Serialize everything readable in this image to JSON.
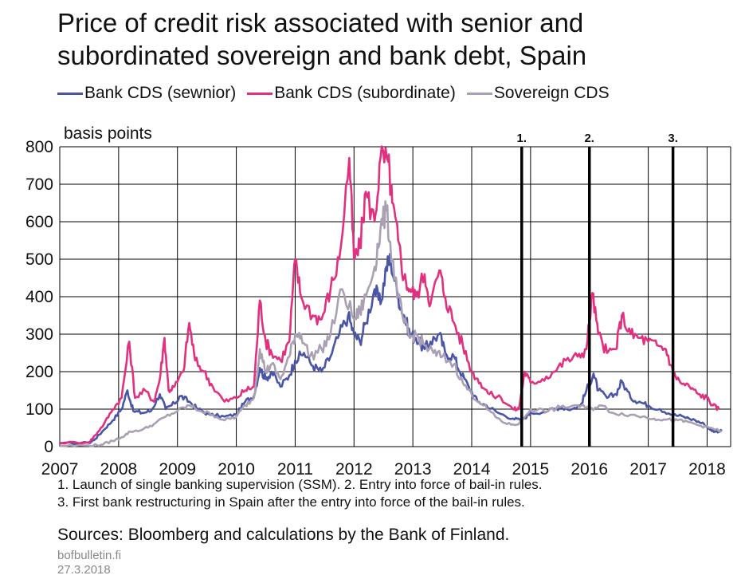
{
  "title_lines": [
    "Price of credit risk associated with senior and",
    "subordinated sovereign and bank debt, Spain"
  ],
  "legend": [
    {
      "label": "Bank CDS (sewnior)",
      "color": "#4a55a8"
    },
    {
      "label": "Bank CDS (subordinate)",
      "color": "#e0307f"
    },
    {
      "label": "Sovereign CDS",
      "color": "#a9a0b4"
    }
  ],
  "notes": [
    "1. Launch of single banking supervision (SSM). 2. Entry into force of bail-in rules.",
    "3. First bank restructuring in Spain after the entry into force of the bail-in rules."
  ],
  "sources": "Sources: Bloomberg and calculations by the Bank of Finland.",
  "site": "bofbulletin.fi",
  "date": "27.3.2018",
  "chart_data": {
    "type": "line",
    "ylabel": "basis points",
    "ylim": [
      0,
      800
    ],
    "yticks": [
      0,
      100,
      200,
      300,
      400,
      500,
      600,
      700,
      800
    ],
    "xlim": [
      2007,
      2018.4
    ],
    "xticks": [
      "2007",
      "2008",
      "2009",
      "2010",
      "2011",
      "2012",
      "2013",
      "2014",
      "2015",
      "2016",
      "2017",
      "2018"
    ],
    "grid": true,
    "legend_position": "top",
    "events": [
      {
        "label": "1.",
        "x": 2014.85
      },
      {
        "label": "2.",
        "x": 2016.0
      },
      {
        "label": "3.",
        "x": 2017.42
      }
    ],
    "series": [
      {
        "name": "Bank CDS (sewnior)",
        "color": "#4a55a8",
        "points": [
          [
            2007.0,
            8
          ],
          [
            2007.5,
            10
          ],
          [
            2007.6,
            20
          ],
          [
            2007.75,
            45
          ],
          [
            2007.9,
            70
          ],
          [
            2008.05,
            100
          ],
          [
            2008.15,
            150
          ],
          [
            2008.25,
            95
          ],
          [
            2008.4,
            90
          ],
          [
            2008.55,
            95
          ],
          [
            2008.7,
            140
          ],
          [
            2008.8,
            100
          ],
          [
            2008.95,
            115
          ],
          [
            2009.05,
            135
          ],
          [
            2009.2,
            120
          ],
          [
            2009.35,
            100
          ],
          [
            2009.55,
            85
          ],
          [
            2009.8,
            80
          ],
          [
            2010.0,
            85
          ],
          [
            2010.15,
            120
          ],
          [
            2010.3,
            135
          ],
          [
            2010.4,
            210
          ],
          [
            2010.5,
            180
          ],
          [
            2010.6,
            200
          ],
          [
            2010.75,
            160
          ],
          [
            2010.9,
            190
          ],
          [
            2011.0,
            230
          ],
          [
            2011.15,
            250
          ],
          [
            2011.3,
            215
          ],
          [
            2011.45,
            200
          ],
          [
            2011.6,
            240
          ],
          [
            2011.75,
            300
          ],
          [
            2011.9,
            350
          ],
          [
            2012.0,
            300
          ],
          [
            2012.1,
            280
          ],
          [
            2012.2,
            330
          ],
          [
            2012.35,
            420
          ],
          [
            2012.45,
            380
          ],
          [
            2012.55,
            480
          ],
          [
            2012.62,
            500
          ],
          [
            2012.75,
            400
          ],
          [
            2012.85,
            350
          ],
          [
            2012.95,
            300
          ],
          [
            2013.05,
            290
          ],
          [
            2013.2,
            260
          ],
          [
            2013.3,
            280
          ],
          [
            2013.45,
            300
          ],
          [
            2013.55,
            250
          ],
          [
            2013.7,
            240
          ],
          [
            2013.8,
            200
          ],
          [
            2013.95,
            160
          ],
          [
            2014.1,
            120
          ],
          [
            2014.25,
            110
          ],
          [
            2014.45,
            90
          ],
          [
            2014.7,
            75
          ],
          [
            2014.85,
            70
          ],
          [
            2015.0,
            90
          ],
          [
            2015.3,
            95
          ],
          [
            2015.5,
            105
          ],
          [
            2015.7,
            100
          ],
          [
            2015.85,
            110
          ],
          [
            2015.95,
            150
          ],
          [
            2016.07,
            195
          ],
          [
            2016.15,
            150
          ],
          [
            2016.3,
            130
          ],
          [
            2016.45,
            140
          ],
          [
            2016.55,
            175
          ],
          [
            2016.7,
            130
          ],
          [
            2016.85,
            120
          ],
          [
            2017.0,
            110
          ],
          [
            2017.2,
            100
          ],
          [
            2017.42,
            85
          ],
          [
            2017.6,
            80
          ],
          [
            2017.8,
            70
          ],
          [
            2017.95,
            60
          ],
          [
            2018.05,
            45
          ],
          [
            2018.15,
            40
          ],
          [
            2018.25,
            42
          ]
        ]
      },
      {
        "name": "Bank CDS (subordinate)",
        "color": "#e0307f",
        "points": [
          [
            2007.0,
            10
          ],
          [
            2007.5,
            12
          ],
          [
            2007.6,
            30
          ],
          [
            2007.75,
            60
          ],
          [
            2007.9,
            100
          ],
          [
            2008.05,
            130
          ],
          [
            2008.18,
            280
          ],
          [
            2008.28,
            130
          ],
          [
            2008.45,
            150
          ],
          [
            2008.6,
            120
          ],
          [
            2008.7,
            180
          ],
          [
            2008.78,
            290
          ],
          [
            2008.85,
            150
          ],
          [
            2008.95,
            160
          ],
          [
            2009.1,
            200
          ],
          [
            2009.2,
            330
          ],
          [
            2009.3,
            230
          ],
          [
            2009.45,
            200
          ],
          [
            2009.6,
            160
          ],
          [
            2009.8,
            120
          ],
          [
            2010.0,
            130
          ],
          [
            2010.15,
            150
          ],
          [
            2010.3,
            160
          ],
          [
            2010.4,
            390
          ],
          [
            2010.5,
            280
          ],
          [
            2010.6,
            250
          ],
          [
            2010.75,
            230
          ],
          [
            2010.9,
            280
          ],
          [
            2011.0,
            500
          ],
          [
            2011.1,
            400
          ],
          [
            2011.3,
            350
          ],
          [
            2011.45,
            340
          ],
          [
            2011.6,
            420
          ],
          [
            2011.75,
            500
          ],
          [
            2011.92,
            770
          ],
          [
            2012.0,
            500
          ],
          [
            2012.1,
            530
          ],
          [
            2012.2,
            680
          ],
          [
            2012.35,
            600
          ],
          [
            2012.45,
            770
          ],
          [
            2012.58,
            760
          ],
          [
            2012.65,
            650
          ],
          [
            2012.75,
            550
          ],
          [
            2012.85,
            450
          ],
          [
            2012.95,
            420
          ],
          [
            2013.05,
            400
          ],
          [
            2013.2,
            460
          ],
          [
            2013.3,
            380
          ],
          [
            2013.45,
            470
          ],
          [
            2013.55,
            400
          ],
          [
            2013.7,
            330
          ],
          [
            2013.85,
            270
          ],
          [
            2014.0,
            200
          ],
          [
            2014.15,
            170
          ],
          [
            2014.3,
            140
          ],
          [
            2014.5,
            130
          ],
          [
            2014.7,
            100
          ],
          [
            2014.8,
            100
          ],
          [
            2014.9,
            200
          ],
          [
            2015.0,
            170
          ],
          [
            2015.2,
            180
          ],
          [
            2015.4,
            200
          ],
          [
            2015.6,
            230
          ],
          [
            2015.8,
            240
          ],
          [
            2015.95,
            260
          ],
          [
            2016.05,
            410
          ],
          [
            2016.15,
            300
          ],
          [
            2016.3,
            250
          ],
          [
            2016.45,
            260
          ],
          [
            2016.55,
            350
          ],
          [
            2016.7,
            300
          ],
          [
            2016.85,
            290
          ],
          [
            2017.0,
            280
          ],
          [
            2017.15,
            270
          ],
          [
            2017.3,
            260
          ],
          [
            2017.42,
            200
          ],
          [
            2017.55,
            170
          ],
          [
            2017.7,
            160
          ],
          [
            2017.85,
            140
          ],
          [
            2018.0,
            130
          ],
          [
            2018.1,
            110
          ],
          [
            2018.2,
            100
          ]
        ]
      },
      {
        "name": "Sovereign CDS",
        "color": "#a9a0b4",
        "points": [
          [
            2007.0,
            2
          ],
          [
            2007.5,
            3
          ],
          [
            2007.7,
            5
          ],
          [
            2007.9,
            15
          ],
          [
            2008.05,
            25
          ],
          [
            2008.2,
            40
          ],
          [
            2008.4,
            45
          ],
          [
            2008.6,
            60
          ],
          [
            2008.8,
            80
          ],
          [
            2009.0,
            95
          ],
          [
            2009.2,
            110
          ],
          [
            2009.4,
            95
          ],
          [
            2009.6,
            85
          ],
          [
            2009.8,
            70
          ],
          [
            2010.0,
            80
          ],
          [
            2010.15,
            110
          ],
          [
            2010.3,
            130
          ],
          [
            2010.4,
            260
          ],
          [
            2010.5,
            200
          ],
          [
            2010.6,
            220
          ],
          [
            2010.75,
            180
          ],
          [
            2010.9,
            240
          ],
          [
            2011.0,
            300
          ],
          [
            2011.1,
            300
          ],
          [
            2011.25,
            240
          ],
          [
            2011.45,
            260
          ],
          [
            2011.6,
            300
          ],
          [
            2011.8,
            420
          ],
          [
            2012.0,
            340
          ],
          [
            2012.1,
            360
          ],
          [
            2012.2,
            400
          ],
          [
            2012.35,
            480
          ],
          [
            2012.45,
            580
          ],
          [
            2012.55,
            630
          ],
          [
            2012.65,
            500
          ],
          [
            2012.75,
            400
          ],
          [
            2012.85,
            330
          ],
          [
            2012.95,
            290
          ],
          [
            2013.05,
            300
          ],
          [
            2013.2,
            270
          ],
          [
            2013.35,
            250
          ],
          [
            2013.5,
            240
          ],
          [
            2013.7,
            220
          ],
          [
            2013.85,
            170
          ],
          [
            2014.0,
            140
          ],
          [
            2014.2,
            110
          ],
          [
            2014.4,
            80
          ],
          [
            2014.6,
            60
          ],
          [
            2014.8,
            60
          ],
          [
            2015.0,
            100
          ],
          [
            2015.3,
            95
          ],
          [
            2015.5,
            105
          ],
          [
            2015.8,
            110
          ],
          [
            2016.0,
            100
          ],
          [
            2016.2,
            110
          ],
          [
            2016.4,
            90
          ],
          [
            2016.7,
            85
          ],
          [
            2016.9,
            80
          ],
          [
            2017.1,
            75
          ],
          [
            2017.3,
            72
          ],
          [
            2017.5,
            70
          ],
          [
            2017.7,
            65
          ],
          [
            2017.9,
            55
          ],
          [
            2018.1,
            48
          ],
          [
            2018.25,
            40
          ]
        ]
      }
    ]
  }
}
